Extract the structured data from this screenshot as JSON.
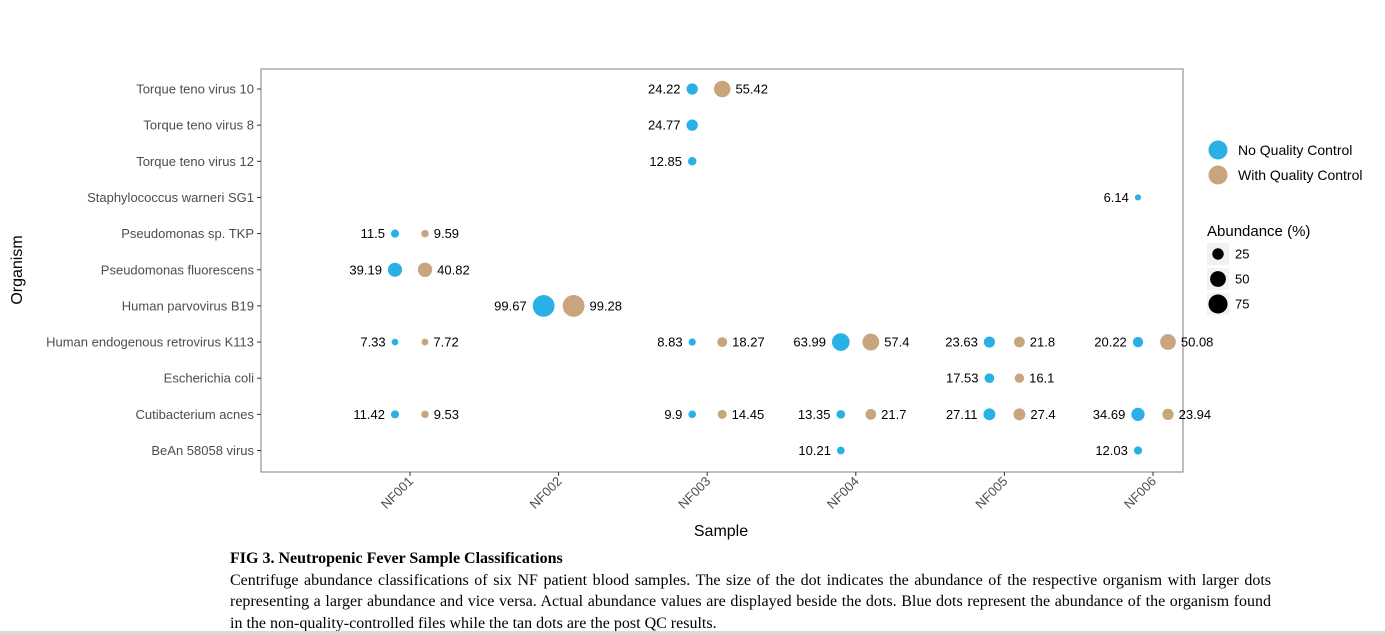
{
  "chart_data": {
    "type": "scatter",
    "xlabel": "Sample",
    "ylabel": "Organism",
    "samples": [
      "NF001",
      "NF002",
      "NF003",
      "NF004",
      "NF005",
      "NF006"
    ],
    "organisms": [
      "Torque teno virus 10",
      "Torque teno virus 8",
      "Torque teno virus 12",
      "Staphylococcus warneri SG1",
      "Pseudomonas sp. TKP",
      "Pseudomonas fluorescens",
      "Human parvovirus B19",
      "Human endogenous retrovirus K113",
      "Escherichia coli",
      "Cutibacterium acnes",
      "BeAn 58058 virus"
    ],
    "series": [
      {
        "name": "No Quality Control",
        "color": "#29b1e6",
        "points": [
          {
            "sample": "NF003",
            "organism": "Torque teno virus 10",
            "value": 24.22,
            "label": "24.22"
          },
          {
            "sample": "NF003",
            "organism": "Torque teno virus 8",
            "value": 24.77,
            "label": "24.77"
          },
          {
            "sample": "NF003",
            "organism": "Torque teno virus 12",
            "value": 12.85,
            "label": "12.85"
          },
          {
            "sample": "NF006",
            "organism": "Staphylococcus warneri SG1",
            "value": 6.14,
            "label": "6.14"
          },
          {
            "sample": "NF001",
            "organism": "Pseudomonas sp. TKP",
            "value": 11.5,
            "label": "11.5"
          },
          {
            "sample": "NF001",
            "organism": "Pseudomonas fluorescens",
            "value": 39.19,
            "label": "39.19"
          },
          {
            "sample": "NF002",
            "organism": "Human parvovirus B19",
            "value": 99.67,
            "label": "99.67"
          },
          {
            "sample": "NF001",
            "organism": "Human endogenous retrovirus K113",
            "value": 7.33,
            "label": "7.33"
          },
          {
            "sample": "NF003",
            "organism": "Human endogenous retrovirus K113",
            "value": 8.83,
            "label": "8.83"
          },
          {
            "sample": "NF004",
            "organism": "Human endogenous retrovirus K113",
            "value": 63.99,
            "label": "63.99"
          },
          {
            "sample": "NF005",
            "organism": "Human endogenous retrovirus K113",
            "value": 23.63,
            "label": "23.63"
          },
          {
            "sample": "NF006",
            "organism": "Human endogenous retrovirus K113",
            "value": 20.22,
            "label": "20.22"
          },
          {
            "sample": "NF005",
            "organism": "Escherichia coli",
            "value": 17.53,
            "label": "17.53"
          },
          {
            "sample": "NF001",
            "organism": "Cutibacterium acnes",
            "value": 11.42,
            "label": "11.42"
          },
          {
            "sample": "NF003",
            "organism": "Cutibacterium acnes",
            "value": 9.9,
            "label": "9.9"
          },
          {
            "sample": "NF004",
            "organism": "Cutibacterium acnes",
            "value": 13.35,
            "label": "13.35"
          },
          {
            "sample": "NF005",
            "organism": "Cutibacterium acnes",
            "value": 27.11,
            "label": "27.11"
          },
          {
            "sample": "NF006",
            "organism": "Cutibacterium acnes",
            "value": 34.69,
            "label": "34.69"
          },
          {
            "sample": "NF004",
            "organism": "BeAn 58058 virus",
            "value": 10.21,
            "label": "10.21"
          },
          {
            "sample": "NF006",
            "organism": "BeAn 58058 virus",
            "value": 12.03,
            "label": "12.03"
          }
        ]
      },
      {
        "name": "With Quality Control",
        "color": "#c9a57e",
        "points": [
          {
            "sample": "NF003",
            "organism": "Torque teno virus 10",
            "value": 55.42,
            "label": "55.42"
          },
          {
            "sample": "NF001",
            "organism": "Pseudomonas sp. TKP",
            "value": 9.59,
            "label": "9.59"
          },
          {
            "sample": "NF001",
            "organism": "Pseudomonas fluorescens",
            "value": 40.82,
            "label": "40.82"
          },
          {
            "sample": "NF002",
            "organism": "Human parvovirus B19",
            "value": 99.28,
            "label": "99.28"
          },
          {
            "sample": "NF001",
            "organism": "Human endogenous retrovirus K113",
            "value": 7.72,
            "label": "7.72"
          },
          {
            "sample": "NF003",
            "organism": "Human endogenous retrovirus K113",
            "value": 18.27,
            "label": "18.27"
          },
          {
            "sample": "NF004",
            "organism": "Human endogenous retrovirus K113",
            "value": 57.4,
            "label": "57.4"
          },
          {
            "sample": "NF005",
            "organism": "Human endogenous retrovirus K113",
            "value": 21.8,
            "label": "21.8"
          },
          {
            "sample": "NF006",
            "organism": "Human endogenous retrovirus K113",
            "value": 50.08,
            "label": "50.08"
          },
          {
            "sample": "NF005",
            "organism": "Escherichia coli",
            "value": 16.1,
            "label": "16.1"
          },
          {
            "sample": "NF001",
            "organism": "Cutibacterium acnes",
            "value": 9.53,
            "label": "9.53"
          },
          {
            "sample": "NF003",
            "organism": "Cutibacterium acnes",
            "value": 14.45,
            "label": "14.45"
          },
          {
            "sample": "NF004",
            "organism": "Cutibacterium acnes",
            "value": 21.7,
            "label": "21.7"
          },
          {
            "sample": "NF005",
            "organism": "Cutibacterium acnes",
            "value": 27.4,
            "label": "27.4"
          },
          {
            "sample": "NF006",
            "organism": "Cutibacterium acnes",
            "value": 23.94,
            "label": "23.94"
          }
        ]
      }
    ],
    "legend": {
      "placement": "right",
      "color_items": [
        "No Quality Control",
        "With Quality Control"
      ],
      "size_title": "Abundance (%)",
      "size_values": [
        25,
        50,
        75
      ],
      "size_labels": [
        "25",
        "50",
        "75"
      ]
    },
    "grid": false
  },
  "caption": {
    "title": "FIG 3. Neutropenic Fever Sample Classifications",
    "body": "Centrifuge abundance classifications of six NF patient blood samples. The size of the dot indicates the abundance of the respective organism with larger dots representing a larger abundance and vice versa. Actual abundance values are displayed beside the dots. Blue dots represent the abundance of the organism found in the non-quality-controlled files while the tan dots are the post QC results."
  }
}
